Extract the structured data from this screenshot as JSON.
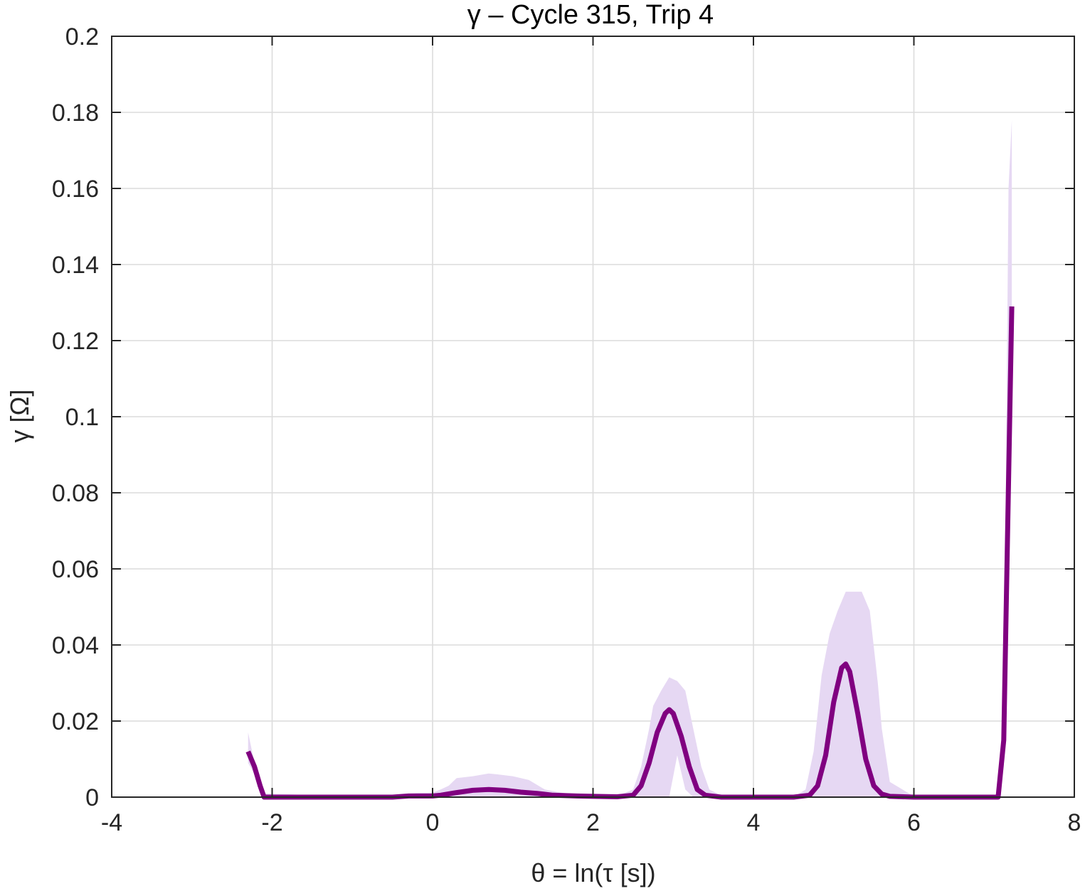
{
  "chart_data": {
    "type": "area",
    "title": "γ – Cycle 315, Trip 4",
    "xlabel": "θ = ln(τ [s])",
    "ylabel": "γ [Ω]",
    "xlim": [
      -4,
      8
    ],
    "ylim": [
      0,
      0.2
    ],
    "xticks": [
      -4,
      -2,
      0,
      2,
      4,
      6,
      8
    ],
    "yticks": [
      0,
      0.02,
      0.04,
      0.06,
      0.08,
      0.1,
      0.12,
      0.14,
      0.16,
      0.18,
      0.2
    ],
    "xtick_labels": [
      "-4",
      "-2",
      "0",
      "2",
      "4",
      "6",
      "8"
    ],
    "ytick_labels": [
      "0",
      "0.02",
      "0.04",
      "0.06",
      "0.08",
      "0.1",
      "0.12",
      "0.14",
      "0.16",
      "0.18",
      "0.2"
    ],
    "grid": true,
    "colors": {
      "line": "#800080",
      "band": "#e6d8f3"
    },
    "series": [
      {
        "kind": "line",
        "x": [
          -2.3,
          -2.22,
          -2.15,
          -2.1,
          -1.5,
          -1.0,
          -0.5,
          -0.3,
          0.0,
          0.1,
          0.3,
          0.5,
          0.7,
          0.9,
          1.1,
          1.3,
          1.5,
          1.8,
          2.0,
          2.3,
          2.5,
          2.6,
          2.7,
          2.8,
          2.9,
          2.95,
          3.0,
          3.1,
          3.2,
          3.3,
          3.4,
          3.6,
          4.0,
          4.5,
          4.7,
          4.8,
          4.9,
          5.0,
          5.1,
          5.15,
          5.2,
          5.3,
          5.4,
          5.5,
          5.6,
          5.7,
          6.0,
          6.5,
          7.05,
          7.12,
          7.22
        ],
        "y": [
          0.012,
          0.008,
          0.003,
          0.0,
          0.0,
          0.0,
          0.0,
          0.0003,
          0.0003,
          0.0005,
          0.0012,
          0.0018,
          0.002,
          0.0018,
          0.0013,
          0.001,
          0.0005,
          0.0003,
          0.0002,
          0.0001,
          0.0005,
          0.003,
          0.009,
          0.017,
          0.022,
          0.023,
          0.022,
          0.016,
          0.008,
          0.002,
          0.0005,
          0.0,
          0.0,
          0.0,
          0.0005,
          0.003,
          0.011,
          0.025,
          0.034,
          0.035,
          0.033,
          0.022,
          0.01,
          0.003,
          0.0008,
          0.0002,
          0.0,
          0.0,
          0.0,
          0.015,
          0.129
        ]
      },
      {
        "kind": "band",
        "x": [
          -2.3,
          -2.22,
          -2.15,
          -2.1,
          -1.5,
          -1.0,
          -0.5,
          -0.2,
          0.0,
          0.1,
          0.2,
          0.3,
          0.5,
          0.7,
          0.8,
          1.0,
          1.2,
          1.4,
          1.6,
          1.8,
          2.0,
          2.3,
          2.5,
          2.6,
          2.7,
          2.75,
          2.85,
          2.95,
          3.05,
          3.15,
          3.25,
          3.35,
          3.45,
          3.6,
          4.0,
          4.5,
          4.65,
          4.75,
          4.85,
          4.95,
          5.05,
          5.15,
          5.25,
          5.35,
          5.45,
          5.55,
          5.6,
          5.7,
          6.0,
          6.5,
          7.05,
          7.12,
          7.18,
          7.22
        ],
        "upper": [
          0.017,
          0.009,
          0.004,
          0.001,
          0.0005,
          0.0005,
          0.0006,
          0.0011,
          0.0012,
          0.002,
          0.003,
          0.005,
          0.0055,
          0.0062,
          0.006,
          0.0055,
          0.0045,
          0.002,
          0.0012,
          0.0006,
          0.0005,
          0.0003,
          0.002,
          0.008,
          0.018,
          0.024,
          0.028,
          0.0315,
          0.0305,
          0.028,
          0.018,
          0.008,
          0.002,
          0.0004,
          0.0,
          0.0,
          0.002,
          0.012,
          0.032,
          0.043,
          0.049,
          0.054,
          0.054,
          0.054,
          0.049,
          0.03,
          0.018,
          0.004,
          0.0002,
          0.0,
          0.0,
          0.02,
          0.16,
          0.178
        ],
        "lower": [
          0.009,
          0.006,
          0.001,
          0.0,
          0.0,
          0.0,
          0.0,
          0.0,
          0.0,
          0.0,
          0.0,
          0.0,
          0.0,
          0.0,
          0.0,
          0.0,
          0.0,
          0.0,
          0.0,
          0.0,
          0.0,
          0.0,
          0.0,
          0.0,
          0.0,
          0.0,
          0.0,
          0.0,
          0.011,
          0.002,
          0.0,
          0.0,
          0.0,
          0.0,
          0.0,
          0.0,
          0.0,
          0.0,
          0.0,
          0.0,
          0.0,
          0.0,
          0.0,
          0.0,
          0.0,
          0.0,
          0.0,
          0.0,
          0.0,
          0.0,
          0.0,
          0.008,
          0.1,
          0.12
        ]
      }
    ]
  }
}
